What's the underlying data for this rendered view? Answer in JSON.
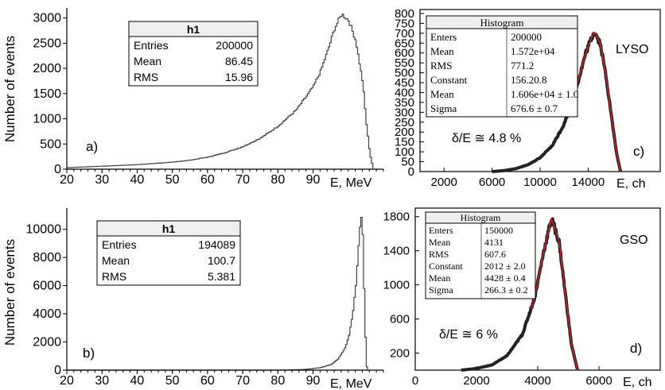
{
  "chart_data": [
    {
      "id": "a",
      "type": "histogram",
      "panel_label": "a)",
      "ylabel": "Number of events",
      "xlabel": "E, MeV",
      "xlim": [
        20,
        110
      ],
      "ylim": [
        0,
        3200
      ],
      "x_ticks": [
        "20",
        "30",
        "40",
        "50",
        "60",
        "70",
        "80",
        "90"
      ],
      "y_ticks": [
        "0",
        "500",
        "1000",
        "1500",
        "2000",
        "2500",
        "3000"
      ],
      "stats": {
        "title": "h1",
        "rows": [
          [
            "Entries",
            "200000"
          ],
          [
            "Mean",
            "86.45"
          ],
          [
            "RMS",
            "15.96"
          ]
        ]
      },
      "points": [
        [
          20,
          30
        ],
        [
          30,
          60
        ],
        [
          40,
          90
        ],
        [
          50,
          140
        ],
        [
          55,
          180
        ],
        [
          60,
          240
        ],
        [
          65,
          330
        ],
        [
          70,
          450
        ],
        [
          75,
          620
        ],
        [
          80,
          860
        ],
        [
          85,
          1170
        ],
        [
          88,
          1450
        ],
        [
          90,
          1650
        ],
        [
          92,
          1950
        ],
        [
          94,
          2350
        ],
        [
          96,
          2800
        ],
        [
          98,
          3080
        ],
        [
          100,
          2950
        ],
        [
          102,
          2550
        ],
        [
          104,
          1700
        ],
        [
          105,
          900
        ],
        [
          106,
          300
        ],
        [
          107,
          0
        ]
      ]
    },
    {
      "id": "b",
      "type": "histogram",
      "panel_label": "b)",
      "ylabel": "Number of events",
      "xlabel": "E, MeV",
      "xlim": [
        20,
        110
      ],
      "ylim": [
        0,
        11500
      ],
      "x_ticks": [
        "20",
        "30",
        "40",
        "50",
        "60",
        "70",
        "80",
        "90"
      ],
      "y_ticks": [
        "0",
        "2000",
        "4000",
        "6000",
        "8000",
        "10000"
      ],
      "stats": {
        "title": "h1",
        "rows": [
          [
            "Entries",
            "194089"
          ],
          [
            "Mean",
            "100.7"
          ],
          [
            "RMS",
            "5.381"
          ]
        ]
      },
      "points": [
        [
          20,
          0
        ],
        [
          80,
          0
        ],
        [
          84,
          20
        ],
        [
          88,
          60
        ],
        [
          92,
          180
        ],
        [
          95,
          400
        ],
        [
          97,
          800
        ],
        [
          99,
          1600
        ],
        [
          100,
          2400
        ],
        [
          101,
          3800
        ],
        [
          102,
          6000
        ],
        [
          103,
          9500
        ],
        [
          103.5,
          11200
        ],
        [
          104,
          9500
        ],
        [
          104.5,
          4000
        ],
        [
          105,
          300
        ],
        [
          105.5,
          0
        ]
      ]
    },
    {
      "id": "c",
      "type": "histogram",
      "panel_label": "c)",
      "annotation": "δ/E ≅ 4.8 %",
      "material": "LYSO",
      "xlabel": "E, ch",
      "xlim": [
        0,
        20000
      ],
      "ylim": [
        0,
        820
      ],
      "x_ticks": [
        "2000",
        "6000",
        "10000",
        "14000"
      ],
      "y_ticks": [
        "0",
        "50",
        "100",
        "150",
        "200",
        "250",
        "300",
        "350",
        "400",
        "450",
        "500",
        "550",
        "600",
        "650",
        "700",
        "750",
        "800"
      ],
      "stats": {
        "title": "Histogram",
        "rows": [
          [
            "Enters",
            "200000"
          ],
          [
            "Mean",
            "1.572e+04"
          ],
          [
            "RMS",
            "771.2"
          ],
          [
            "Constant",
            "156.20.8"
          ],
          [
            "Mean",
            "1.606e+04 ± 1.0"
          ],
          [
            "Sigma",
            "676.6 ± 0.7"
          ]
        ]
      },
      "points": [
        [
          6000,
          0
        ],
        [
          7000,
          5
        ],
        [
          8000,
          15
        ],
        [
          9000,
          35
        ],
        [
          10000,
          70
        ],
        [
          11000,
          130
        ],
        [
          12000,
          240
        ],
        [
          13000,
          420
        ],
        [
          13800,
          600
        ],
        [
          14500,
          710
        ],
        [
          15000,
          650
        ],
        [
          15500,
          480
        ],
        [
          16000,
          250
        ],
        [
          16400,
          80
        ],
        [
          16700,
          0
        ]
      ]
    },
    {
      "id": "d",
      "type": "histogram",
      "panel_label": "d)",
      "annotation": "δ/E ≅ 6 %",
      "material": "GSO",
      "xlabel": "E, ch",
      "xlim": [
        0,
        8000
      ],
      "ylim": [
        0,
        1900
      ],
      "x_ticks": [
        "0",
        "2000",
        "4000",
        "6000"
      ],
      "y_ticks": [
        "200",
        "600",
        "1000",
        "1400",
        "1800"
      ],
      "stats": {
        "title": "Histogram",
        "rows": [
          [
            "Enters",
            "150000"
          ],
          [
            "Mean",
            "4131"
          ],
          [
            "RMS",
            "607.6"
          ],
          [
            "Constant",
            "2012 ± 2.0"
          ],
          [
            "Mean",
            "4428 ± 0.4"
          ],
          [
            "Sigma",
            "266.3 ± 0.2"
          ]
        ]
      },
      "points": [
        [
          1500,
          0
        ],
        [
          2000,
          20
        ],
        [
          2500,
          60
        ],
        [
          3000,
          170
        ],
        [
          3500,
          420
        ],
        [
          3900,
          850
        ],
        [
          4200,
          1400
        ],
        [
          4450,
          1780
        ],
        [
          4700,
          1500
        ],
        [
          4900,
          900
        ],
        [
          5100,
          300
        ],
        [
          5300,
          0
        ]
      ]
    }
  ]
}
